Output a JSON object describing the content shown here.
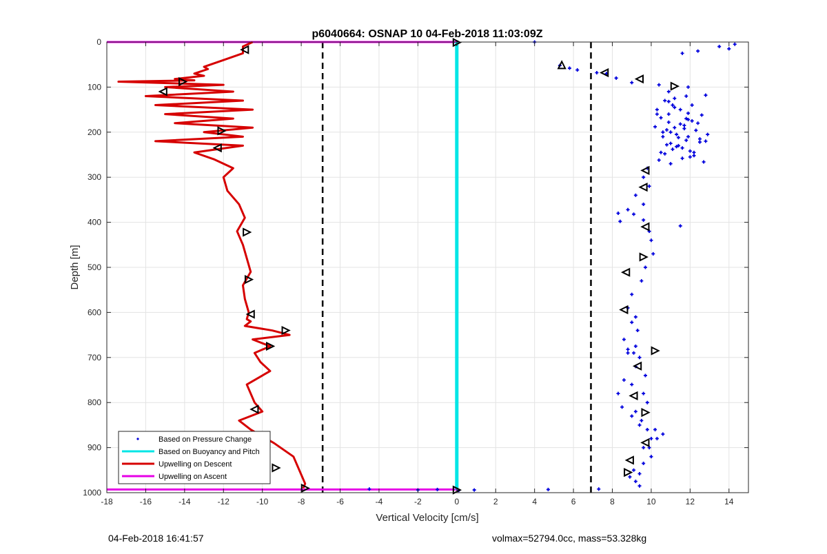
{
  "footer": {
    "timestamp": "04-Feb-2018 16:41:57",
    "volmax_mass": "volmax=52794.0cc, mass=53.328kg"
  },
  "chart_data": {
    "type": "scatter",
    "title": "p6040664: OSNAP 10 04-Feb-2018 11:03:09Z",
    "xlabel": "Vertical Velocity [cm/s]",
    "ylabel": "Depth [m]",
    "xlim": [
      -18,
      15
    ],
    "ylim": [
      1000,
      0
    ],
    "y_reversed": true,
    "xticks": [
      "-18",
      "-16",
      "-14",
      "-12",
      "-10",
      "-8",
      "-6",
      "-4",
      "-2",
      "0",
      "2",
      "4",
      "6",
      "8",
      "10",
      "12",
      "14"
    ],
    "yticks": [
      "0",
      "100",
      "200",
      "300",
      "400",
      "500",
      "600",
      "700",
      "800",
      "900",
      "1000"
    ],
    "grid": true,
    "legend_position": "bottom-left",
    "reference_lines": [
      {
        "x": -6.9,
        "style": "dashed",
        "color": "#000000"
      },
      {
        "x": 6.9,
        "style": "dashed",
        "color": "#000000"
      }
    ],
    "series": [
      {
        "name": "Based on Pressure Change",
        "style": "points",
        "color": "#0000dd",
        "x": [
          4.0,
          14.3,
          13.5,
          14.0,
          12.4,
          11.6,
          5.3,
          5.8,
          6.2,
          7.2,
          7.7,
          8.2,
          9.0,
          10.4,
          11.9,
          10.9,
          12.8,
          11.2,
          10.9,
          12.1,
          11.2,
          10.3,
          11.9,
          12.6,
          10.5,
          11.9,
          10.9,
          11.5,
          10.2,
          11.7,
          12.3,
          11.0,
          12.9,
          10.6,
          11.4,
          11.8,
          12.5,
          10.8,
          11.3,
          11.1,
          12.0,
          10.7,
          12.2,
          11.6,
          10.4,
          12.7,
          11.0,
          11.5,
          10.9,
          11.8,
          12.4,
          11.2,
          10.6,
          11.9,
          12.8,
          11.4,
          10.3,
          12.1,
          11.7,
          10.8,
          11.3,
          12.5,
          11.0,
          11.6,
          10.5,
          12.0,
          11.1,
          10.7,
          11.8,
          12.2,
          9.8,
          9.6,
          9.9,
          9.2,
          9.6,
          8.8,
          8.3,
          8.4,
          9.1,
          9.6,
          11.5,
          9.9,
          10.0,
          10.1,
          9.7,
          9.5,
          9.0,
          8.8,
          9.2,
          9.0,
          9.3,
          8.6,
          8.8,
          9.2,
          8.6,
          8.3,
          8.5,
          9.0,
          9.4,
          10.2,
          10.6,
          10.3,
          9.9,
          10.0,
          9.6,
          9.1,
          9.4,
          8.9,
          9.2,
          9.4,
          9.6,
          9.8,
          9.2,
          9.5,
          9.8,
          10.0,
          9.6,
          9.4,
          9.7,
          9.0,
          9.2,
          8.8,
          9.1,
          0.1,
          -1.0,
          -2.0,
          -4.5,
          0.9,
          4.7,
          7.3
        ],
        "y": [
          0,
          5,
          10,
          15,
          20,
          25,
          52,
          58,
          62,
          68,
          70,
          80,
          90,
          95,
          100,
          110,
          118,
          125,
          132,
          140,
          145,
          150,
          158,
          162,
          168,
          172,
          178,
          182,
          188,
          192,
          196,
          200,
          205,
          210,
          212,
          218,
          222,
          228,
          232,
          238,
          242,
          248,
          252,
          258,
          262,
          266,
          270,
          150,
          160,
          170,
          180,
          190,
          200,
          210,
          220,
          230,
          160,
          175,
          185,
          195,
          205,
          215,
          225,
          235,
          245,
          255,
          140,
          130,
          120,
          245,
          280,
          300,
          320,
          340,
          360,
          372,
          380,
          398,
          382,
          395,
          408,
          420,
          440,
          470,
          500,
          530,
          560,
          590,
          610,
          622,
          640,
          660,
          690,
          720,
          750,
          780,
          810,
          830,
          850,
          860,
          870,
          880,
          900,
          920,
          935,
          950,
          958,
          965,
          975,
          985,
          780,
          800,
          820,
          840,
          860,
          880,
          900,
          700,
          740,
          760,
          675,
          682,
          690,
          995,
          993,
          994,
          992,
          994,
          993,
          992
        ]
      },
      {
        "name": "Based on Buoyancy and Pitch",
        "style": "line",
        "color": "#00e6e6",
        "x": [
          0,
          0
        ],
        "y": [
          0,
          993
        ]
      },
      {
        "name": "Upwelling on Descent",
        "style": "line",
        "color": "#d60000",
        "x": [
          -10.5,
          -11,
          -11,
          -12,
          -13,
          -12.8,
          -13.5,
          -13,
          -14.5,
          -13.5,
          -17.4,
          -12,
          -15,
          -11.5,
          -16,
          -11,
          -15.5,
          -10.5,
          -15,
          -11.5,
          -14.5,
          -10.5,
          -13,
          -11,
          -15.5,
          -11,
          -13.5,
          -12.5,
          -11.5,
          -12,
          -11.8,
          -11.2,
          -10.9,
          -11.3,
          -11,
          -10.8,
          -10.6,
          -11,
          -10.9,
          -10.7,
          -10.8,
          -10.6,
          -10.9,
          -9.5,
          -8.6,
          -10.5,
          -9.6,
          -10.4,
          -10.1,
          -9.6,
          -10.8,
          -10.4,
          -10,
          -11.2,
          -10.6,
          -9.4,
          -8.4,
          -8.1,
          -7.8,
          -7.9
        ],
        "y": [
          0,
          10,
          25,
          40,
          55,
          60,
          70,
          75,
          82,
          85,
          88,
          95,
          100,
          110,
          120,
          130,
          140,
          150,
          160,
          170,
          180,
          190,
          200,
          210,
          220,
          230,
          245,
          260,
          280,
          300,
          330,
          360,
          390,
          420,
          450,
          480,
          510,
          540,
          570,
          600,
          615,
          620,
          630,
          640,
          650,
          660,
          675,
          690,
          710,
          730,
          760,
          800,
          820,
          840,
          860,
          890,
          920,
          950,
          980,
          990
        ]
      },
      {
        "name": "Upwelling on Ascent",
        "style": "line",
        "color": "#e600e6",
        "x": [
          -18,
          0,
          0,
          -18
        ],
        "y": [
          0,
          0,
          993,
          993
        ]
      }
    ],
    "markers": {
      "style": "triangle",
      "points": [
        {
          "x": -10.9,
          "y": 17,
          "dir": "left"
        },
        {
          "x": -14.1,
          "y": 88,
          "dir": "right"
        },
        {
          "x": -15.1,
          "y": 110,
          "dir": "left"
        },
        {
          "x": -12.1,
          "y": 197,
          "dir": "right"
        },
        {
          "x": -12.3,
          "y": 235,
          "dir": "left"
        },
        {
          "x": -10.8,
          "y": 422,
          "dir": "right"
        },
        {
          "x": -10.7,
          "y": 527,
          "dir": "right"
        },
        {
          "x": -10.6,
          "y": 604,
          "dir": "left"
        },
        {
          "x": -8.8,
          "y": 640,
          "dir": "right"
        },
        {
          "x": -9.6,
          "y": 675,
          "dir": "right"
        },
        {
          "x": -10.4,
          "y": 815,
          "dir": "left"
        },
        {
          "x": -9.3,
          "y": 945,
          "dir": "right"
        },
        {
          "x": -7.8,
          "y": 990,
          "dir": "right"
        },
        {
          "x": 0.0,
          "y": 1,
          "dir": "right"
        },
        {
          "x": 0.0,
          "y": 994,
          "dir": "right"
        },
        {
          "x": 5.4,
          "y": 51,
          "dir": "up"
        },
        {
          "x": 7.6,
          "y": 68,
          "dir": "left"
        },
        {
          "x": 9.4,
          "y": 82,
          "dir": "left"
        },
        {
          "x": 11.2,
          "y": 98,
          "dir": "right"
        },
        {
          "x": 9.7,
          "y": 285,
          "dir": "left"
        },
        {
          "x": 9.6,
          "y": 322,
          "dir": "left"
        },
        {
          "x": 9.7,
          "y": 410,
          "dir": "left"
        },
        {
          "x": 9.6,
          "y": 477,
          "dir": "right"
        },
        {
          "x": 8.7,
          "y": 511,
          "dir": "left"
        },
        {
          "x": 8.6,
          "y": 594,
          "dir": "left"
        },
        {
          "x": 10.2,
          "y": 685,
          "dir": "right"
        },
        {
          "x": 9.3,
          "y": 719,
          "dir": "left"
        },
        {
          "x": 9.1,
          "y": 785,
          "dir": "left"
        },
        {
          "x": 9.7,
          "y": 822,
          "dir": "right"
        },
        {
          "x": 9.7,
          "y": 889,
          "dir": "left"
        },
        {
          "x": 8.9,
          "y": 928,
          "dir": "left"
        },
        {
          "x": 8.8,
          "y": 955,
          "dir": "right"
        }
      ]
    }
  }
}
